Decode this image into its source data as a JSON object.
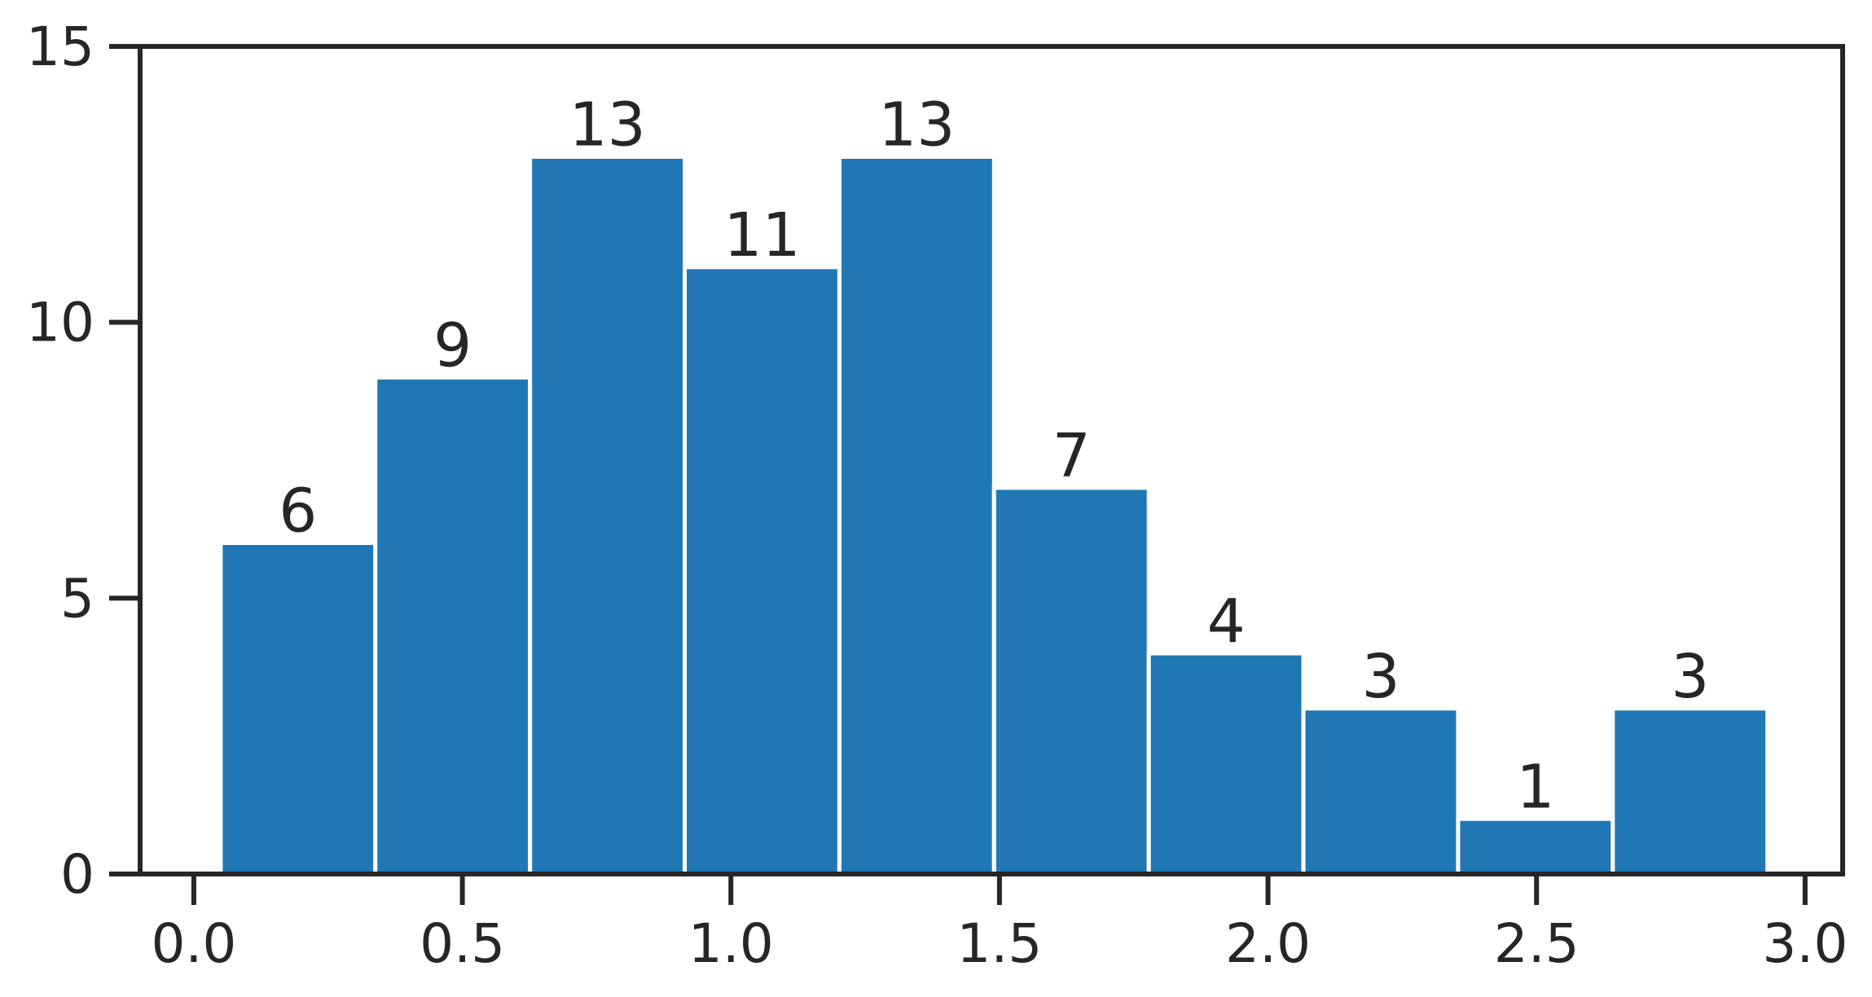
{
  "chart_data": {
    "type": "bar",
    "title": "",
    "xlabel": "",
    "ylabel": "",
    "xlim": [
      -0.1,
      3.07
    ],
    "ylim": [
      0,
      15
    ],
    "xticks": [
      0.0,
      0.5,
      1.0,
      1.5,
      2.0,
      2.5,
      3.0
    ],
    "xtick_labels": [
      "0.0",
      "0.5",
      "1.0",
      "1.5",
      "2.0",
      "2.5",
      "3.0"
    ],
    "yticks": [
      0,
      5,
      10,
      15
    ],
    "ytick_labels": [
      "0",
      "5",
      "10",
      "15"
    ],
    "grid": false,
    "legend": "none",
    "bin_edges": [
      0.05,
      0.338,
      0.626,
      0.914,
      1.202,
      1.49,
      1.778,
      2.066,
      2.354,
      2.642,
      2.93
    ],
    "values": [
      6,
      9,
      13,
      11,
      13,
      7,
      4,
      3,
      1,
      3
    ],
    "data_labels": [
      "6",
      "9",
      "13",
      "11",
      "13",
      "7",
      "4",
      "3",
      "1",
      "3"
    ],
    "colors": {
      "bar": "#2077b4",
      "bar_edge": "#ffffff",
      "axis": "#262626",
      "text": "#262626"
    }
  }
}
